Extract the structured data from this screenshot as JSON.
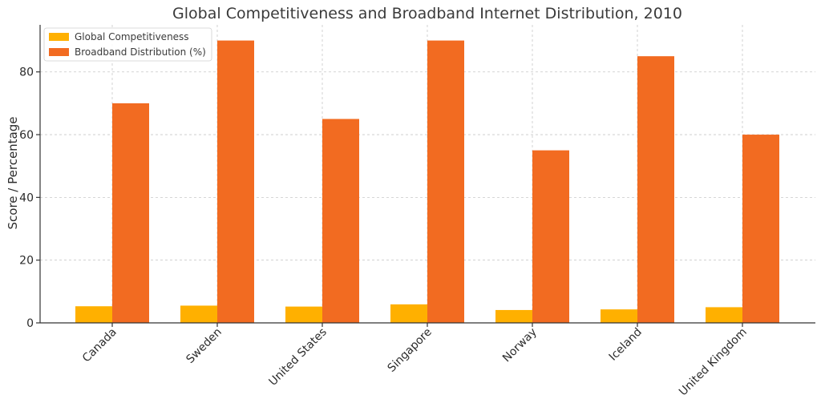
{
  "chart_data": {
    "type": "bar",
    "title": "Global Competitiveness and Broadband Internet Distribution, 2010",
    "xlabel": "",
    "ylabel": "Score / Percentage",
    "categories": [
      "Canada",
      "Sweden",
      "United States",
      "Singapore",
      "Norway",
      "Iceland",
      "United Kingdom"
    ],
    "series": [
      {
        "name": "Global Competitiveness",
        "color": "#FFB000",
        "values": [
          5.3,
          5.5,
          5.2,
          5.9,
          4.1,
          4.3,
          5.0
        ]
      },
      {
        "name": "Broadband Distribution (%)",
        "color": "#F26B21",
        "values": [
          70,
          90,
          65,
          90,
          55,
          85,
          60
        ]
      }
    ],
    "ylim": [
      0,
      95
    ],
    "yticks": [
      0,
      20,
      40,
      60,
      80
    ],
    "grid": true,
    "legend_position": "top-left"
  }
}
